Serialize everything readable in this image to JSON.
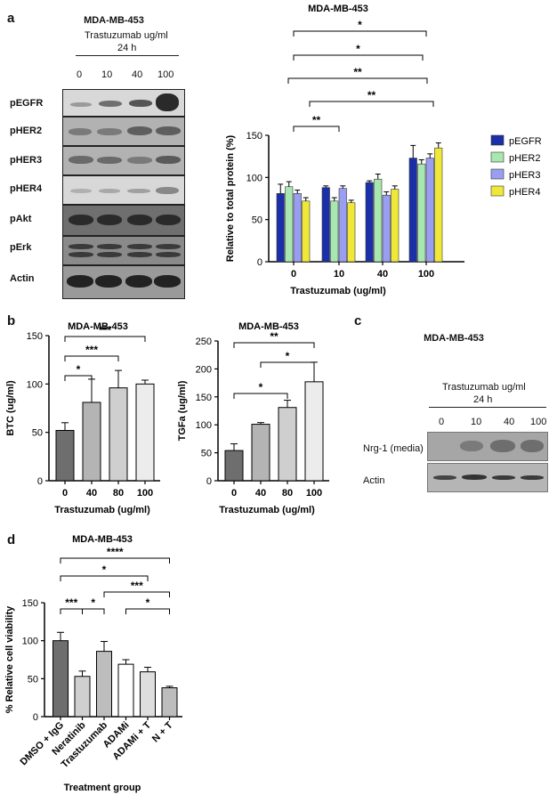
{
  "panel_labels": {
    "a": "a",
    "b": "b",
    "c": "c",
    "d": "d"
  },
  "panel_a": {
    "blot": {
      "title": "MDA-MB-453",
      "treatment": "Trastuzumab ug/ml",
      "time": "24 h",
      "doses": [
        "0",
        "10",
        "40",
        "100"
      ],
      "rows": [
        "pEGFR",
        "pHER2",
        "pHER3",
        "pHER4",
        "pAkt",
        "pErk",
        "Actin"
      ]
    },
    "chart_data": {
      "type": "bar",
      "title": "MDA-MB-453",
      "categories": [
        "0",
        "10",
        "40",
        "100"
      ],
      "series": [
        {
          "name": "pEGFR",
          "color": "#1a2fa8",
          "values": [
            81,
            88,
            94,
            123
          ],
          "errors": [
            11,
            2,
            2,
            15
          ]
        },
        {
          "name": "pHER2",
          "color": "#a8e8b0",
          "values": [
            89,
            72,
            98,
            116
          ],
          "errors": [
            6,
            4,
            6,
            5
          ]
        },
        {
          "name": "pHER3",
          "color": "#9a9ef0",
          "values": [
            81,
            87,
            79,
            123
          ],
          "errors": [
            4,
            3,
            4,
            5
          ]
        },
        {
          "name": "pHER4",
          "color": "#f0e838",
          "values": [
            72,
            70,
            86,
            135
          ],
          "errors": [
            4,
            3,
            4,
            6
          ]
        }
      ],
      "xlabel": "Trastuzumab (ug/ml)",
      "ylabel": "Relative to total protein (%)",
      "ylim": [
        0,
        150
      ],
      "yticks": [
        0,
        50,
        100,
        150
      ],
      "significance": [
        "**",
        "*",
        "*",
        "**",
        "**"
      ],
      "legend_position": "right"
    }
  },
  "panel_b": {
    "chart_data": [
      {
        "type": "bar",
        "title": "MDA-MB-453",
        "categories": [
          "0",
          "40",
          "80",
          "100"
        ],
        "values": [
          52,
          81,
          96,
          100
        ],
        "errors": [
          8,
          24,
          18,
          4
        ],
        "colors": [
          "#6e6e6e",
          "#b4b4b4",
          "#cfcfcf",
          "#ececec"
        ],
        "xlabel": "Trastuzumab (ug/ml)",
        "ylabel": "BTC (ug/ml)",
        "ylim": [
          0,
          150
        ],
        "yticks": [
          0,
          50,
          100,
          150
        ],
        "significance": [
          "*",
          "***",
          "***"
        ]
      },
      {
        "type": "bar",
        "title": "MDA-MB-453",
        "categories": [
          "0",
          "40",
          "80",
          "100"
        ],
        "values": [
          54,
          101,
          131,
          177
        ],
        "errors": [
          12,
          3,
          13,
          35
        ],
        "colors": [
          "#6e6e6e",
          "#b4b4b4",
          "#cfcfcf",
          "#ececec"
        ],
        "xlabel": "Trastuzumab (ug/ml)",
        "ylabel": "TGFa (ug/ml)",
        "ylim": [
          0,
          250
        ],
        "yticks": [
          0,
          50,
          100,
          150,
          200,
          250
        ],
        "significance": [
          "*",
          "*",
          "**"
        ]
      }
    ]
  },
  "panel_c": {
    "blot": {
      "title": "MDA-MB-453",
      "treatment": "Trastuzumab ug/ml",
      "time": "24 h",
      "doses": [
        "0",
        "10",
        "40",
        "100"
      ],
      "rows": [
        "Nrg-1 (media)",
        "Actin"
      ]
    }
  },
  "panel_d": {
    "chart_data": {
      "type": "bar",
      "title": "MDA-MB-453",
      "categories": [
        "DMSO + IgG",
        "Neratinib",
        "Trastuzumab",
        "ADAMi",
        "ADAMi + T",
        "N + T"
      ],
      "values": [
        100,
        53,
        86,
        69,
        59,
        38
      ],
      "errors": [
        11,
        7,
        13,
        6,
        6,
        2
      ],
      "colors": [
        "#6e6e6e",
        "#cfcfcf",
        "#bdbdbd",
        "#ffffff",
        "#dedede",
        "#bdbdbd"
      ],
      "xlabel": "Treatment group",
      "ylabel": "% Relative cell viability",
      "ylim": [
        0,
        150
      ],
      "yticks": [
        0,
        50,
        100,
        150
      ],
      "significance": [
        "****",
        "*",
        "***",
        "*",
        "***",
        "*"
      ]
    }
  }
}
